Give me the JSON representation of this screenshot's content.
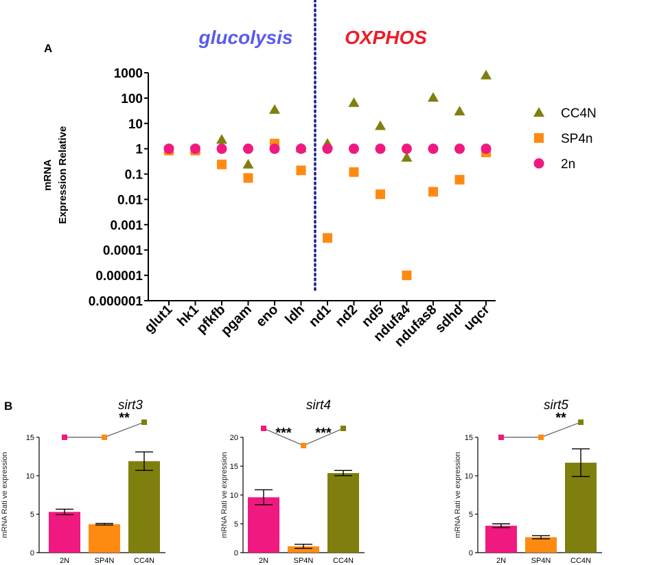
{
  "panel_a": {
    "label": "A",
    "region_left": "glucolysis",
    "region_right": "OXPHOS",
    "region_left_color": "#5a5aee",
    "region_right_color": "#ee1c2a",
    "divider_color": "#1a1a8c"
  },
  "panel_b": {
    "label": "B"
  },
  "colors": {
    "2N": "#f0197f",
    "SP4N": "#ff8a12",
    "CC4N": "#7f7f0e"
  },
  "chart_data": [
    {
      "type": "scatter",
      "id": "expression",
      "title": "",
      "ylabel_line1": "mRNA",
      "ylabel_line2": "Expression Relative",
      "yscale": "log",
      "ylim": [
        1e-06,
        1000
      ],
      "ytick_labels": [
        "1000",
        "100",
        "10",
        "1",
        "0.1",
        "0.01",
        "0.001",
        "0.0001",
        "0.00001",
        "0.000001"
      ],
      "categories": [
        "glut1",
        "hk1",
        "pfkfb",
        "pgam",
        "eno",
        "ldh",
        "nd1",
        "nd2",
        "nd5",
        "ndufa4",
        "ndufas8",
        "sdhd",
        "uqcr"
      ],
      "series": [
        {
          "name": "CC4N",
          "marker": "triangle",
          "values": [
            1.0,
            1.0,
            2.3,
            0.24,
            35,
            1.05,
            1.6,
            65,
            8,
            0.45,
            105,
            30,
            800
          ]
        },
        {
          "name": "SP4n",
          "marker": "square",
          "values": [
            0.85,
            0.85,
            0.24,
            0.07,
            1.6,
            0.14,
            0.0003,
            0.12,
            0.016,
            1e-05,
            0.02,
            0.06,
            0.72
          ]
        },
        {
          "name": "2n",
          "marker": "circle",
          "values": [
            1,
            1,
            1,
            1,
            1,
            1,
            1,
            1,
            1,
            1,
            1,
            1,
            1
          ]
        }
      ]
    },
    {
      "type": "bar",
      "id": "sirt3",
      "title": "sirt3",
      "ylabel": "mRNA Rati ve expression",
      "ylim": [
        0,
        15
      ],
      "yticks": [
        "0",
        "5",
        "10",
        "15"
      ],
      "categories": [
        "2N",
        "SP4N",
        "CC4N"
      ],
      "values": [
        5.3,
        3.7,
        11.9
      ],
      "errors": [
        0.35,
        0.1,
        1.2
      ],
      "significance": [
        {
          "from": 0,
          "to": 1,
          "label": ""
        },
        {
          "from": 1,
          "to": 2,
          "label": "**"
        }
      ]
    },
    {
      "type": "bar",
      "id": "sirt4",
      "title": "sirt4",
      "ylabel": "mRNA Rati ve expression",
      "ylim": [
        0,
        20
      ],
      "yticks": [
        "0",
        "5",
        "10",
        "15",
        "20"
      ],
      "categories": [
        "2N",
        "SP4N",
        "CC4N"
      ],
      "values": [
        9.6,
        1.1,
        13.8
      ],
      "errors": [
        1.3,
        0.35,
        0.45
      ],
      "significance": [
        {
          "from": 0,
          "to": 1,
          "label": "***"
        },
        {
          "from": 1,
          "to": 2,
          "label": "***"
        }
      ]
    },
    {
      "type": "bar",
      "id": "sirt5",
      "title": "sirt5",
      "ylabel": "mRNA Rati ve expression",
      "ylim": [
        0,
        15
      ],
      "yticks": [
        "0",
        "5",
        "10",
        "15"
      ],
      "categories": [
        "2N",
        "SP4N",
        "CC4N"
      ],
      "values": [
        3.5,
        2.0,
        11.7
      ],
      "errors": [
        0.25,
        0.2,
        1.8
      ],
      "significance": [
        {
          "from": 0,
          "to": 1,
          "label": ""
        },
        {
          "from": 1,
          "to": 2,
          "label": "**"
        }
      ]
    }
  ]
}
